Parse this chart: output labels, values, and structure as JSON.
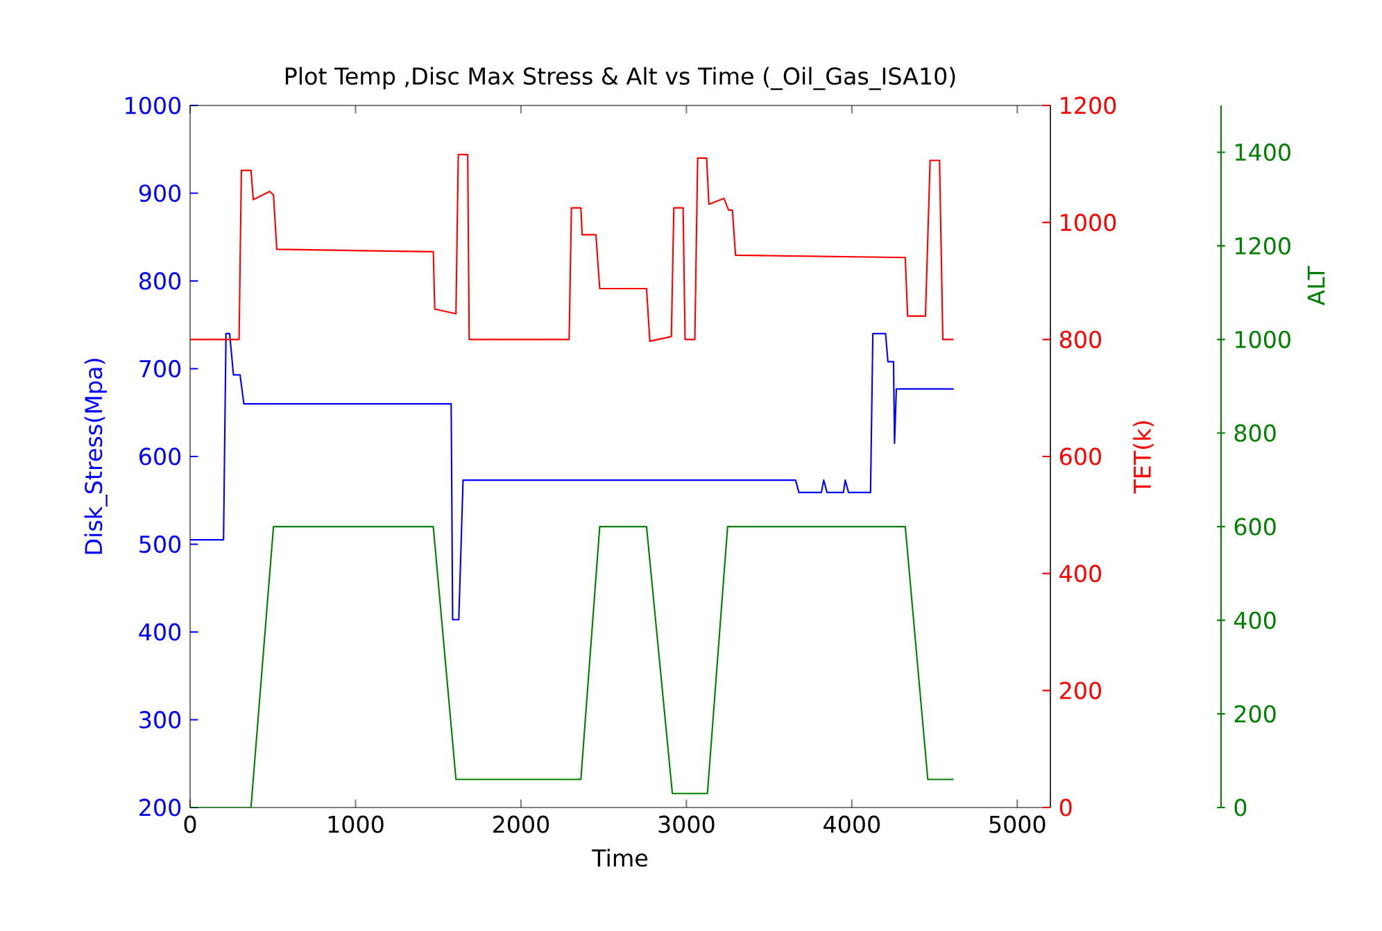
{
  "chart_data": {
    "type": "line",
    "title": "Plot Temp ,Disc Max Stress & Alt vs Time (_Oil_Gas_ISA10)",
    "xlabel": "Time",
    "ylabel": "Disk_Stress(Mpa)",
    "y2label": "TET(k)",
    "y3label": "ALT",
    "xlim": [
      0,
      5200
    ],
    "xticks": [
      0,
      1000,
      2000,
      3000,
      4000,
      5000
    ],
    "ylim": [
      200,
      1000
    ],
    "yticks": [
      200,
      300,
      400,
      500,
      600,
      700,
      800,
      900,
      1000
    ],
    "y2lim": [
      0,
      1200
    ],
    "y2ticks": [
      0,
      200,
      400,
      600,
      800,
      1000,
      1200
    ],
    "y3lim": [
      0,
      1500
    ],
    "y3ticks": [
      0,
      200,
      400,
      600,
      800,
      1000,
      1200,
      1400
    ],
    "series": [
      {
        "axis": "y",
        "color": "#0000ff",
        "x": [
          0,
          202,
          217,
          239,
          262,
          302,
          325,
          1578,
          1587,
          1624,
          1650,
          3660,
          3680,
          3816,
          3830,
          3850,
          3949,
          3960,
          3980,
          4113,
          4127,
          4204,
          4218,
          4252,
          4258,
          4269,
          4615
        ],
        "values": [
          505,
          505,
          740,
          740,
          693,
          693,
          660,
          660,
          414,
          414,
          573,
          573,
          559,
          559,
          573,
          559,
          559,
          573,
          559,
          559,
          740,
          740,
          708,
          708,
          615,
          677,
          677
        ]
      },
      {
        "axis": "y2",
        "color": "#ff0000",
        "x": [
          0,
          296,
          310,
          368,
          382,
          481,
          504,
          524,
          1470,
          1479,
          1607,
          1621,
          1678,
          1687,
          2291,
          2305,
          2362,
          2370,
          2453,
          2476,
          2759,
          2779,
          2909,
          2924,
          2980,
          2992,
          3051,
          3068,
          3122,
          3136,
          3227,
          3255,
          3278,
          3297,
          4323,
          4337,
          4445,
          4473,
          4530,
          4550,
          4615
        ],
        "values": [
          800,
          800,
          1089,
          1089,
          1039,
          1053,
          1047,
          954,
          950,
          852,
          844,
          1116,
          1116,
          800,
          800,
          1025,
          1025,
          979,
          979,
          887,
          887,
          797,
          805,
          1025,
          1025,
          800,
          800,
          1110,
          1110,
          1031,
          1041,
          1021,
          1021,
          944,
          940,
          840,
          840,
          1106,
          1106,
          800,
          800
        ]
      },
      {
        "axis": "y3",
        "color": "#008000",
        "x": [
          0,
          368,
          504,
          1470,
          1607,
          2362,
          2476,
          2759,
          2915,
          3127,
          3249,
          4323,
          4459,
          4615
        ],
        "values": [
          0,
          0,
          600,
          600,
          60,
          60,
          600,
          600,
          30,
          30,
          600,
          600,
          60,
          60
        ]
      }
    ]
  }
}
